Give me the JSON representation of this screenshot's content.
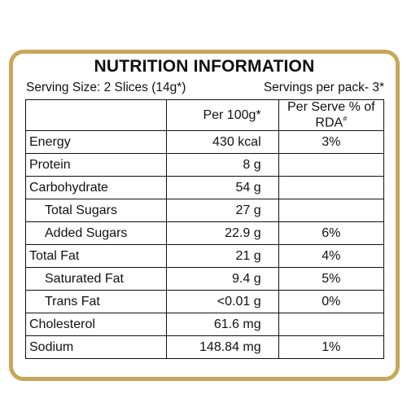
{
  "label": {
    "title": "NUTRITION INFORMATION",
    "serving_size": "Serving Size: 2 Slices (14g*)",
    "servings_per_pack": "Servings per pack- 3*",
    "columns": {
      "per_100g": "Per 100g*",
      "per_serve_rda": "Per Serve % of RDA",
      "rda_mark": "#"
    },
    "rows": [
      {
        "name": "Energy",
        "per_100g": "430 kcal",
        "rda": "3%"
      },
      {
        "name": "Protein",
        "per_100g": "8 g",
        "rda": ""
      },
      {
        "name": "Carbohydrate",
        "per_100g": "54 g",
        "rda": ""
      },
      {
        "name": "Total Sugars",
        "per_100g": "27 g",
        "rda": ""
      },
      {
        "name": "Added Sugars",
        "per_100g": "22.9 g",
        "rda": "6%"
      },
      {
        "name": "Total Fat",
        "per_100g": "21 g",
        "rda": "4%"
      },
      {
        "name": "Saturated Fat",
        "per_100g": "9.4 g",
        "rda": "5%"
      },
      {
        "name": "Trans Fat",
        "per_100g": "<0.01 g",
        "rda": "0%"
      },
      {
        "name": "Cholesterol",
        "per_100g": "61.6 mg",
        "rda": ""
      },
      {
        "name": "Sodium",
        "per_100g": "148.84 mg",
        "rda": "1%"
      }
    ]
  },
  "colors": {
    "border": "#c9a75a",
    "text": "#111111"
  }
}
